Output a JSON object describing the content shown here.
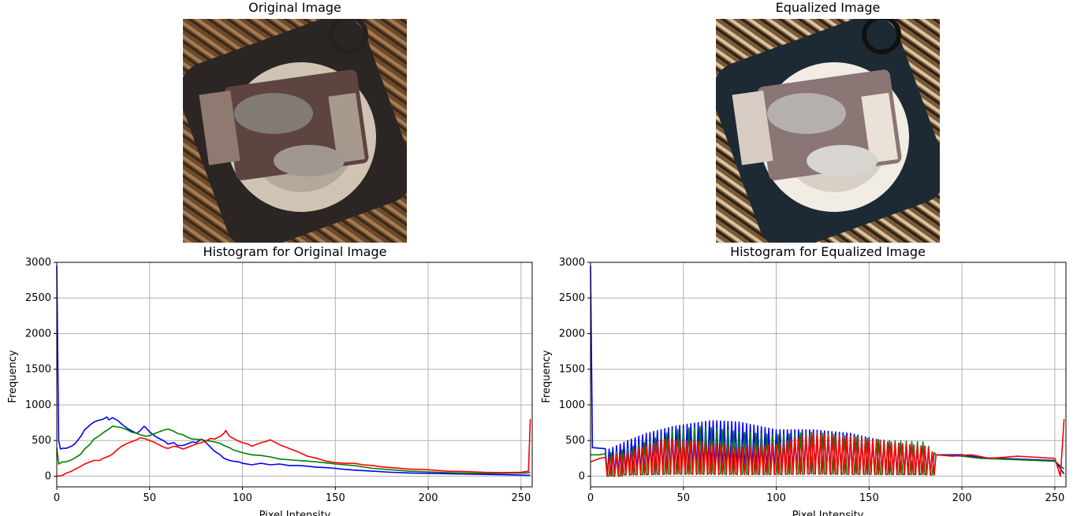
{
  "images": {
    "original": {
      "title": "Original Image"
    },
    "equalized": {
      "title": "Equalized Image"
    }
  },
  "chart_data": [
    {
      "type": "line",
      "title": "Histogram for Original Image",
      "xlabel": "Pixel Intensity",
      "ylabel": "Frequency",
      "xlim": [
        0,
        256
      ],
      "ylim": [
        -150,
        3000
      ],
      "xticks": [
        0,
        50,
        100,
        150,
        200,
        250
      ],
      "yticks": [
        0,
        500,
        1000,
        1500,
        2000,
        2500,
        3000
      ],
      "grid": true,
      "series": [
        {
          "color": "#0000ff",
          "x": [
            0,
            1,
            2,
            3,
            5,
            8,
            10,
            13,
            15,
            18,
            20,
            22,
            25,
            27,
            28,
            30,
            33,
            35,
            38,
            40,
            43,
            45,
            47,
            48,
            50,
            53,
            55,
            58,
            60,
            63,
            65,
            68,
            70,
            73,
            75,
            78,
            80,
            83,
            85,
            88,
            90,
            93,
            95,
            98,
            100,
            105,
            110,
            115,
            120,
            125,
            130,
            135,
            140,
            145,
            150,
            155,
            160,
            170,
            180,
            190,
            200,
            210,
            220,
            230,
            240,
            250,
            254,
            255
          ],
          "y": [
            2950,
            500,
            380,
            390,
            390,
            420,
            460,
            560,
            650,
            720,
            760,
            780,
            800,
            830,
            790,
            820,
            780,
            730,
            670,
            640,
            600,
            640,
            700,
            680,
            620,
            560,
            530,
            490,
            450,
            470,
            430,
            430,
            450,
            480,
            470,
            520,
            480,
            400,
            350,
            300,
            250,
            220,
            210,
            200,
            180,
            160,
            180,
            160,
            170,
            150,
            150,
            140,
            125,
            120,
            110,
            95,
            85,
            70,
            55,
            45,
            40,
            35,
            30,
            25,
            20,
            15,
            10,
            15
          ]
        },
        {
          "color": "#008000",
          "x": [
            0,
            1,
            3,
            5,
            8,
            10,
            13,
            15,
            18,
            20,
            23,
            25,
            28,
            30,
            33,
            35,
            38,
            40,
            43,
            45,
            48,
            50,
            53,
            55,
            58,
            60,
            63,
            65,
            68,
            70,
            73,
            75,
            78,
            80,
            83,
            85,
            88,
            90,
            93,
            95,
            100,
            105,
            110,
            115,
            120,
            130,
            140,
            150,
            160,
            170,
            180,
            190,
            200,
            210,
            220,
            230,
            240,
            250,
            254,
            255
          ],
          "y": [
            400,
            170,
            200,
            200,
            230,
            260,
            310,
            380,
            450,
            520,
            570,
            610,
            660,
            700,
            690,
            680,
            650,
            620,
            600,
            580,
            560,
            570,
            600,
            620,
            650,
            660,
            630,
            600,
            580,
            550,
            520,
            520,
            510,
            500,
            490,
            480,
            460,
            430,
            400,
            370,
            330,
            300,
            290,
            270,
            240,
            220,
            200,
            170,
            150,
            110,
            90,
            70,
            60,
            50,
            45,
            40,
            40,
            45,
            45,
            60
          ]
        },
        {
          "color": "#ff0000",
          "x": [
            0,
            3,
            5,
            8,
            10,
            13,
            15,
            18,
            20,
            23,
            25,
            28,
            30,
            33,
            35,
            38,
            40,
            43,
            45,
            48,
            50,
            53,
            55,
            58,
            60,
            63,
            65,
            68,
            70,
            73,
            75,
            78,
            80,
            83,
            85,
            88,
            90,
            91,
            93,
            95,
            98,
            100,
            103,
            105,
            108,
            110,
            113,
            115,
            118,
            120,
            125,
            130,
            135,
            140,
            145,
            150,
            155,
            160,
            165,
            170,
            175,
            180,
            190,
            200,
            210,
            220,
            230,
            240,
            250,
            254,
            255
          ],
          "y": [
            0,
            10,
            40,
            70,
            100,
            140,
            170,
            200,
            220,
            220,
            250,
            280,
            310,
            380,
            420,
            460,
            480,
            510,
            540,
            520,
            500,
            470,
            440,
            400,
            390,
            420,
            410,
            380,
            400,
            430,
            450,
            470,
            490,
            530,
            520,
            560,
            600,
            640,
            560,
            530,
            490,
            470,
            450,
            420,
            450,
            470,
            490,
            510,
            470,
            440,
            390,
            340,
            280,
            250,
            210,
            190,
            180,
            180,
            160,
            150,
            130,
            120,
            100,
            90,
            70,
            65,
            55,
            50,
            55,
            70,
            800
          ]
        }
      ]
    },
    {
      "type": "line",
      "title": "Histogram for Equalized Image",
      "xlabel": "Pixel Intensity",
      "ylabel": "Frequency",
      "xlim": [
        0,
        256
      ],
      "ylim": [
        -150,
        3000
      ],
      "xticks": [
        0,
        50,
        100,
        150,
        200,
        250
      ],
      "yticks": [
        0,
        500,
        1000,
        1500,
        2000,
        2500,
        3000
      ],
      "grid": true,
      "series": [
        {
          "color": "#0000ff",
          "pattern": "comb",
          "peak": [
            [
              0,
              2950
            ],
            [
              1,
              400
            ],
            [
              10,
              380
            ],
            [
              20,
              500
            ],
            [
              30,
              600
            ],
            [
              45,
              700
            ],
            [
              65,
              780
            ],
            [
              80,
              760
            ],
            [
              100,
              650
            ],
            [
              120,
              650
            ],
            [
              140,
              600
            ],
            [
              160,
              480
            ],
            [
              180,
              420
            ],
            [
              186,
              300
            ],
            [
              200,
              300
            ],
            [
              210,
              260
            ],
            [
              230,
              240
            ],
            [
              250,
              220
            ],
            [
              255,
              30
            ]
          ]
        },
        {
          "color": "#008000",
          "pattern": "comb",
          "peak": [
            [
              0,
              300
            ],
            [
              5,
              300
            ],
            [
              15,
              350
            ],
            [
              30,
              480
            ],
            [
              45,
              650
            ],
            [
              60,
              700
            ],
            [
              80,
              620
            ],
            [
              100,
              580
            ],
            [
              120,
              620
            ],
            [
              140,
              560
            ],
            [
              160,
              500
            ],
            [
              180,
              480
            ],
            [
              186,
              300
            ],
            [
              200,
              280
            ],
            [
              210,
              250
            ],
            [
              230,
              230
            ],
            [
              250,
              210
            ],
            [
              255,
              100
            ]
          ]
        },
        {
          "color": "#ff0000",
          "pattern": "comb",
          "peak": [
            [
              0,
              200
            ],
            [
              5,
              250
            ],
            [
              15,
              300
            ],
            [
              25,
              380
            ],
            [
              40,
              520
            ],
            [
              60,
              480
            ],
            [
              80,
              400
            ],
            [
              100,
              450
            ],
            [
              120,
              600
            ],
            [
              140,
              550
            ],
            [
              160,
              480
            ],
            [
              180,
              420
            ],
            [
              186,
              300
            ],
            [
              195,
              280
            ],
            [
              205,
              300
            ],
            [
              215,
              250
            ],
            [
              230,
              280
            ],
            [
              250,
              250
            ],
            [
              253,
              0
            ],
            [
              255,
              800
            ]
          ]
        }
      ]
    }
  ]
}
